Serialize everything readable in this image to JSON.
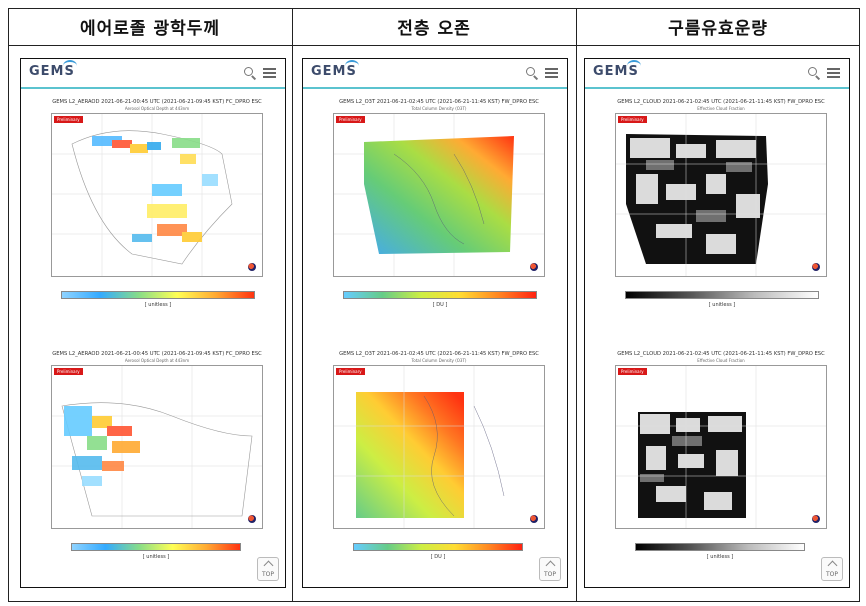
{
  "columns": [
    {
      "header": "에어로졸 광학두께",
      "logo": "GEMS",
      "products": [
        {
          "title": "GEMS L2_AERAOD 2021-06-21-00:45 UTC (2021-06-21-09:45 KST) FC_DPRO ESC",
          "subtitle": "Aerosol Optical Depth at 443nm",
          "badge": "Preliminary",
          "colorbar_label": "[ unitless ]"
        },
        {
          "title": "GEMS L2_AERAOD 2021-06-21-00:45 UTC (2021-06-21-09:45 KST) FC_DPRO ESC",
          "subtitle": "Aerosol Optical Depth at 443nm",
          "badge": "Preliminary",
          "colorbar_label": "[ unitless ]"
        }
      ]
    },
    {
      "header": "전층 오존",
      "logo": "GEMS",
      "products": [
        {
          "title": "GEMS L2_O3T 2021-06-21-02:45 UTC (2021-06-21-11:45 KST) FW_DPRO ESC",
          "subtitle": "Total Column Density (O3T)",
          "badge": "Preliminary",
          "colorbar_label": "[ DU ]"
        },
        {
          "title": "GEMS L2_O3T 2021-06-21-02:45 UTC (2021-06-21-11:45 KST) FW_DPRO ESC",
          "subtitle": "Total Column Density (O3T)",
          "badge": "Preliminary",
          "colorbar_label": "[ DU ]"
        }
      ]
    },
    {
      "header": "구름유효운량",
      "logo": "GEMS",
      "products": [
        {
          "title": "GEMS L2_CLOUD 2021-06-21-02:45 UTC (2021-06-21-11:45 KST) FW_DPRO ESC",
          "subtitle": "Effective Cloud Fraction",
          "badge": "Preliminary",
          "colorbar_label": "[ unitless ]"
        },
        {
          "title": "GEMS L2_CLOUD 2021-06-21-02:45 UTC (2021-06-21-11:45 KST) FW_DPRO ESC",
          "subtitle": "Effective Cloud Fraction",
          "badge": "Preliminary",
          "colorbar_label": "[ unitless ]"
        }
      ]
    }
  ],
  "top_button": "TOP",
  "colors": {
    "accent_line": "#5bc3cf",
    "badge": "#d81818"
  }
}
